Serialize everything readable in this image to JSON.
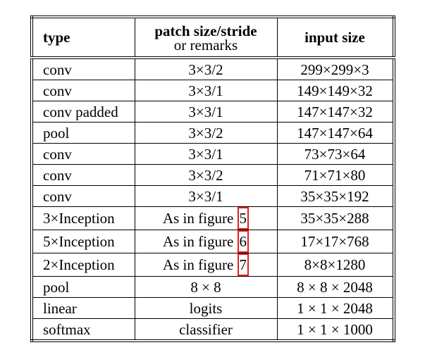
{
  "table": {
    "header": [
      "type",
      [
        "patch size/stride",
        "or remarks"
      ],
      "input size"
    ],
    "rows": [
      [
        "conv",
        "3×3/2",
        "299×299×3"
      ],
      [
        "conv",
        "3×3/1",
        "149×149×32"
      ],
      [
        "conv padded",
        "3×3/1",
        "147×147×32"
      ],
      [
        "pool",
        "3×3/2",
        "147×147×64"
      ],
      [
        "conv",
        "3×3/1",
        "73×73×64"
      ],
      [
        "conv",
        "3×3/2",
        "71×71×80"
      ],
      [
        "conv",
        "3×3/1",
        "35×35×192"
      ],
      [
        "3×Inception",
        {
          "text": "As in figure",
          "ref": "5"
        },
        "35×35×288"
      ],
      [
        "5×Inception",
        {
          "text": "As in figure",
          "ref": "6"
        },
        "17×17×768"
      ],
      [
        "2×Inception",
        {
          "text": "As in figure",
          "ref": "7"
        },
        "8×8×1280"
      ],
      [
        "pool",
        "8 × 8",
        "8 × 8 × 2048"
      ],
      [
        "linear",
        "logits",
        "1 × 1 × 2048"
      ],
      [
        "softmax",
        "classifier",
        "1 × 1 × 1000"
      ]
    ]
  }
}
